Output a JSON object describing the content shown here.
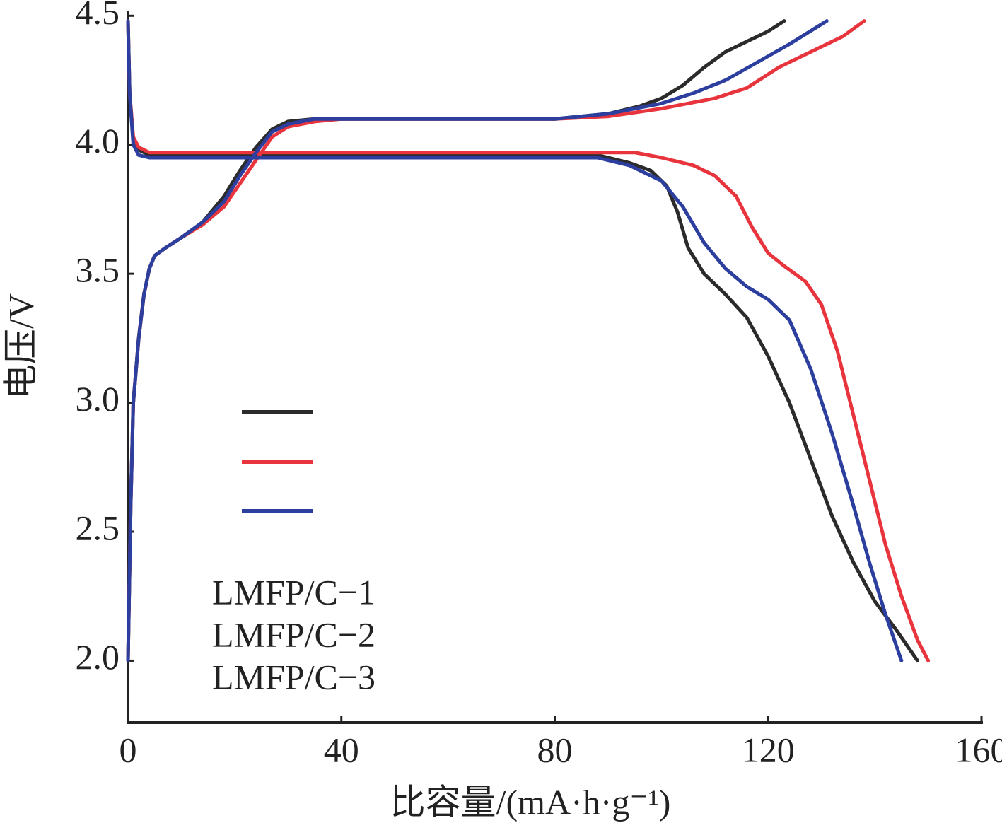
{
  "chart_data": {
    "type": "line",
    "x_label": "比容量/(mA·h·g⁻¹)",
    "y_label": "电压/V",
    "xlim": [
      0,
      160
    ],
    "ylim": [
      1.76,
      4.52
    ],
    "xticks": [
      0,
      40,
      80,
      120,
      160
    ],
    "yticks": [
      {
        "value": 2.0,
        "label": "2.0"
      },
      2.5,
      {
        "value": 3.0,
        "label": "3.0"
      },
      3.5,
      {
        "value": 4.0,
        "label": "4.0"
      },
      4.5
    ],
    "series": [
      {
        "name": "LMFP/C−1",
        "color": "#2b2b2b",
        "charge": {
          "x": [
            0,
            0.5,
            1,
            2,
            3,
            4,
            5,
            7,
            10,
            14,
            18,
            21,
            24,
            27,
            30,
            35,
            40,
            60,
            80,
            90,
            96,
            100,
            104,
            108,
            112,
            116,
            120,
            123
          ],
          "y": [
            2.0,
            2.6,
            3.0,
            3.25,
            3.42,
            3.52,
            3.57,
            3.6,
            3.64,
            3.7,
            3.8,
            3.9,
            3.99,
            4.06,
            4.09,
            4.1,
            4.1,
            4.1,
            4.1,
            4.12,
            4.15,
            4.18,
            4.23,
            4.3,
            4.36,
            4.4,
            4.44,
            4.48
          ]
        },
        "discharge": {
          "x": [
            0,
            0.3,
            1,
            2,
            4,
            40,
            80,
            88,
            94,
            98,
            101,
            103,
            105,
            108,
            112,
            116,
            120,
            124,
            128,
            132,
            136,
            140,
            144,
            148
          ],
          "y": [
            4.48,
            4.2,
            4.02,
            3.98,
            3.96,
            3.96,
            3.96,
            3.96,
            3.93,
            3.9,
            3.84,
            3.74,
            3.6,
            3.5,
            3.42,
            3.33,
            3.18,
            3.0,
            2.78,
            2.56,
            2.38,
            2.23,
            2.12,
            2.0
          ]
        }
      },
      {
        "name": "LMFP/C−2",
        "color": "#e8343c",
        "charge": {
          "x": [
            0,
            0.5,
            1,
            2,
            3,
            4,
            5,
            7,
            10,
            14,
            18,
            21,
            24,
            27,
            30,
            35,
            40,
            60,
            80,
            90,
            100,
            110,
            116,
            122,
            128,
            134,
            138
          ],
          "y": [
            2.0,
            2.6,
            3.0,
            3.25,
            3.42,
            3.52,
            3.57,
            3.6,
            3.64,
            3.69,
            3.76,
            3.85,
            3.94,
            4.03,
            4.07,
            4.09,
            4.1,
            4.1,
            4.1,
            4.11,
            4.14,
            4.18,
            4.22,
            4.3,
            4.36,
            4.42,
            4.48
          ]
        },
        "discharge": {
          "x": [
            0,
            0.3,
            1,
            2,
            4,
            40,
            80,
            95,
            100,
            106,
            110,
            114,
            117,
            120,
            123,
            127,
            130,
            133,
            136,
            139,
            142,
            145,
            148,
            150
          ],
          "y": [
            4.48,
            4.2,
            4.03,
            3.99,
            3.97,
            3.97,
            3.97,
            3.97,
            3.95,
            3.92,
            3.88,
            3.8,
            3.68,
            3.58,
            3.53,
            3.47,
            3.38,
            3.2,
            2.95,
            2.7,
            2.45,
            2.25,
            2.08,
            2.0
          ]
        }
      },
      {
        "name": "LMFP/C−3",
        "color": "#2c3e9e",
        "charge": {
          "x": [
            0,
            0.5,
            1,
            2,
            3,
            4,
            5,
            7,
            10,
            14,
            18,
            21,
            24,
            27,
            30,
            35,
            40,
            60,
            80,
            90,
            100,
            106,
            112,
            118,
            124,
            131
          ],
          "y": [
            2.0,
            2.6,
            3.0,
            3.25,
            3.42,
            3.52,
            3.57,
            3.6,
            3.64,
            3.7,
            3.78,
            3.88,
            3.97,
            4.05,
            4.08,
            4.1,
            4.1,
            4.1,
            4.1,
            4.12,
            4.16,
            4.2,
            4.25,
            4.32,
            4.39,
            4.48
          ]
        },
        "discharge": {
          "x": [
            0,
            0.3,
            1,
            2,
            4,
            40,
            80,
            88,
            94,
            100,
            104,
            108,
            112,
            116,
            120,
            124,
            128,
            132,
            136,
            139,
            142,
            145
          ],
          "y": [
            4.48,
            4.2,
            4.0,
            3.96,
            3.95,
            3.95,
            3.95,
            3.95,
            3.92,
            3.86,
            3.76,
            3.62,
            3.52,
            3.45,
            3.4,
            3.32,
            3.13,
            2.88,
            2.6,
            2.38,
            2.18,
            2.0
          ]
        }
      }
    ]
  }
}
